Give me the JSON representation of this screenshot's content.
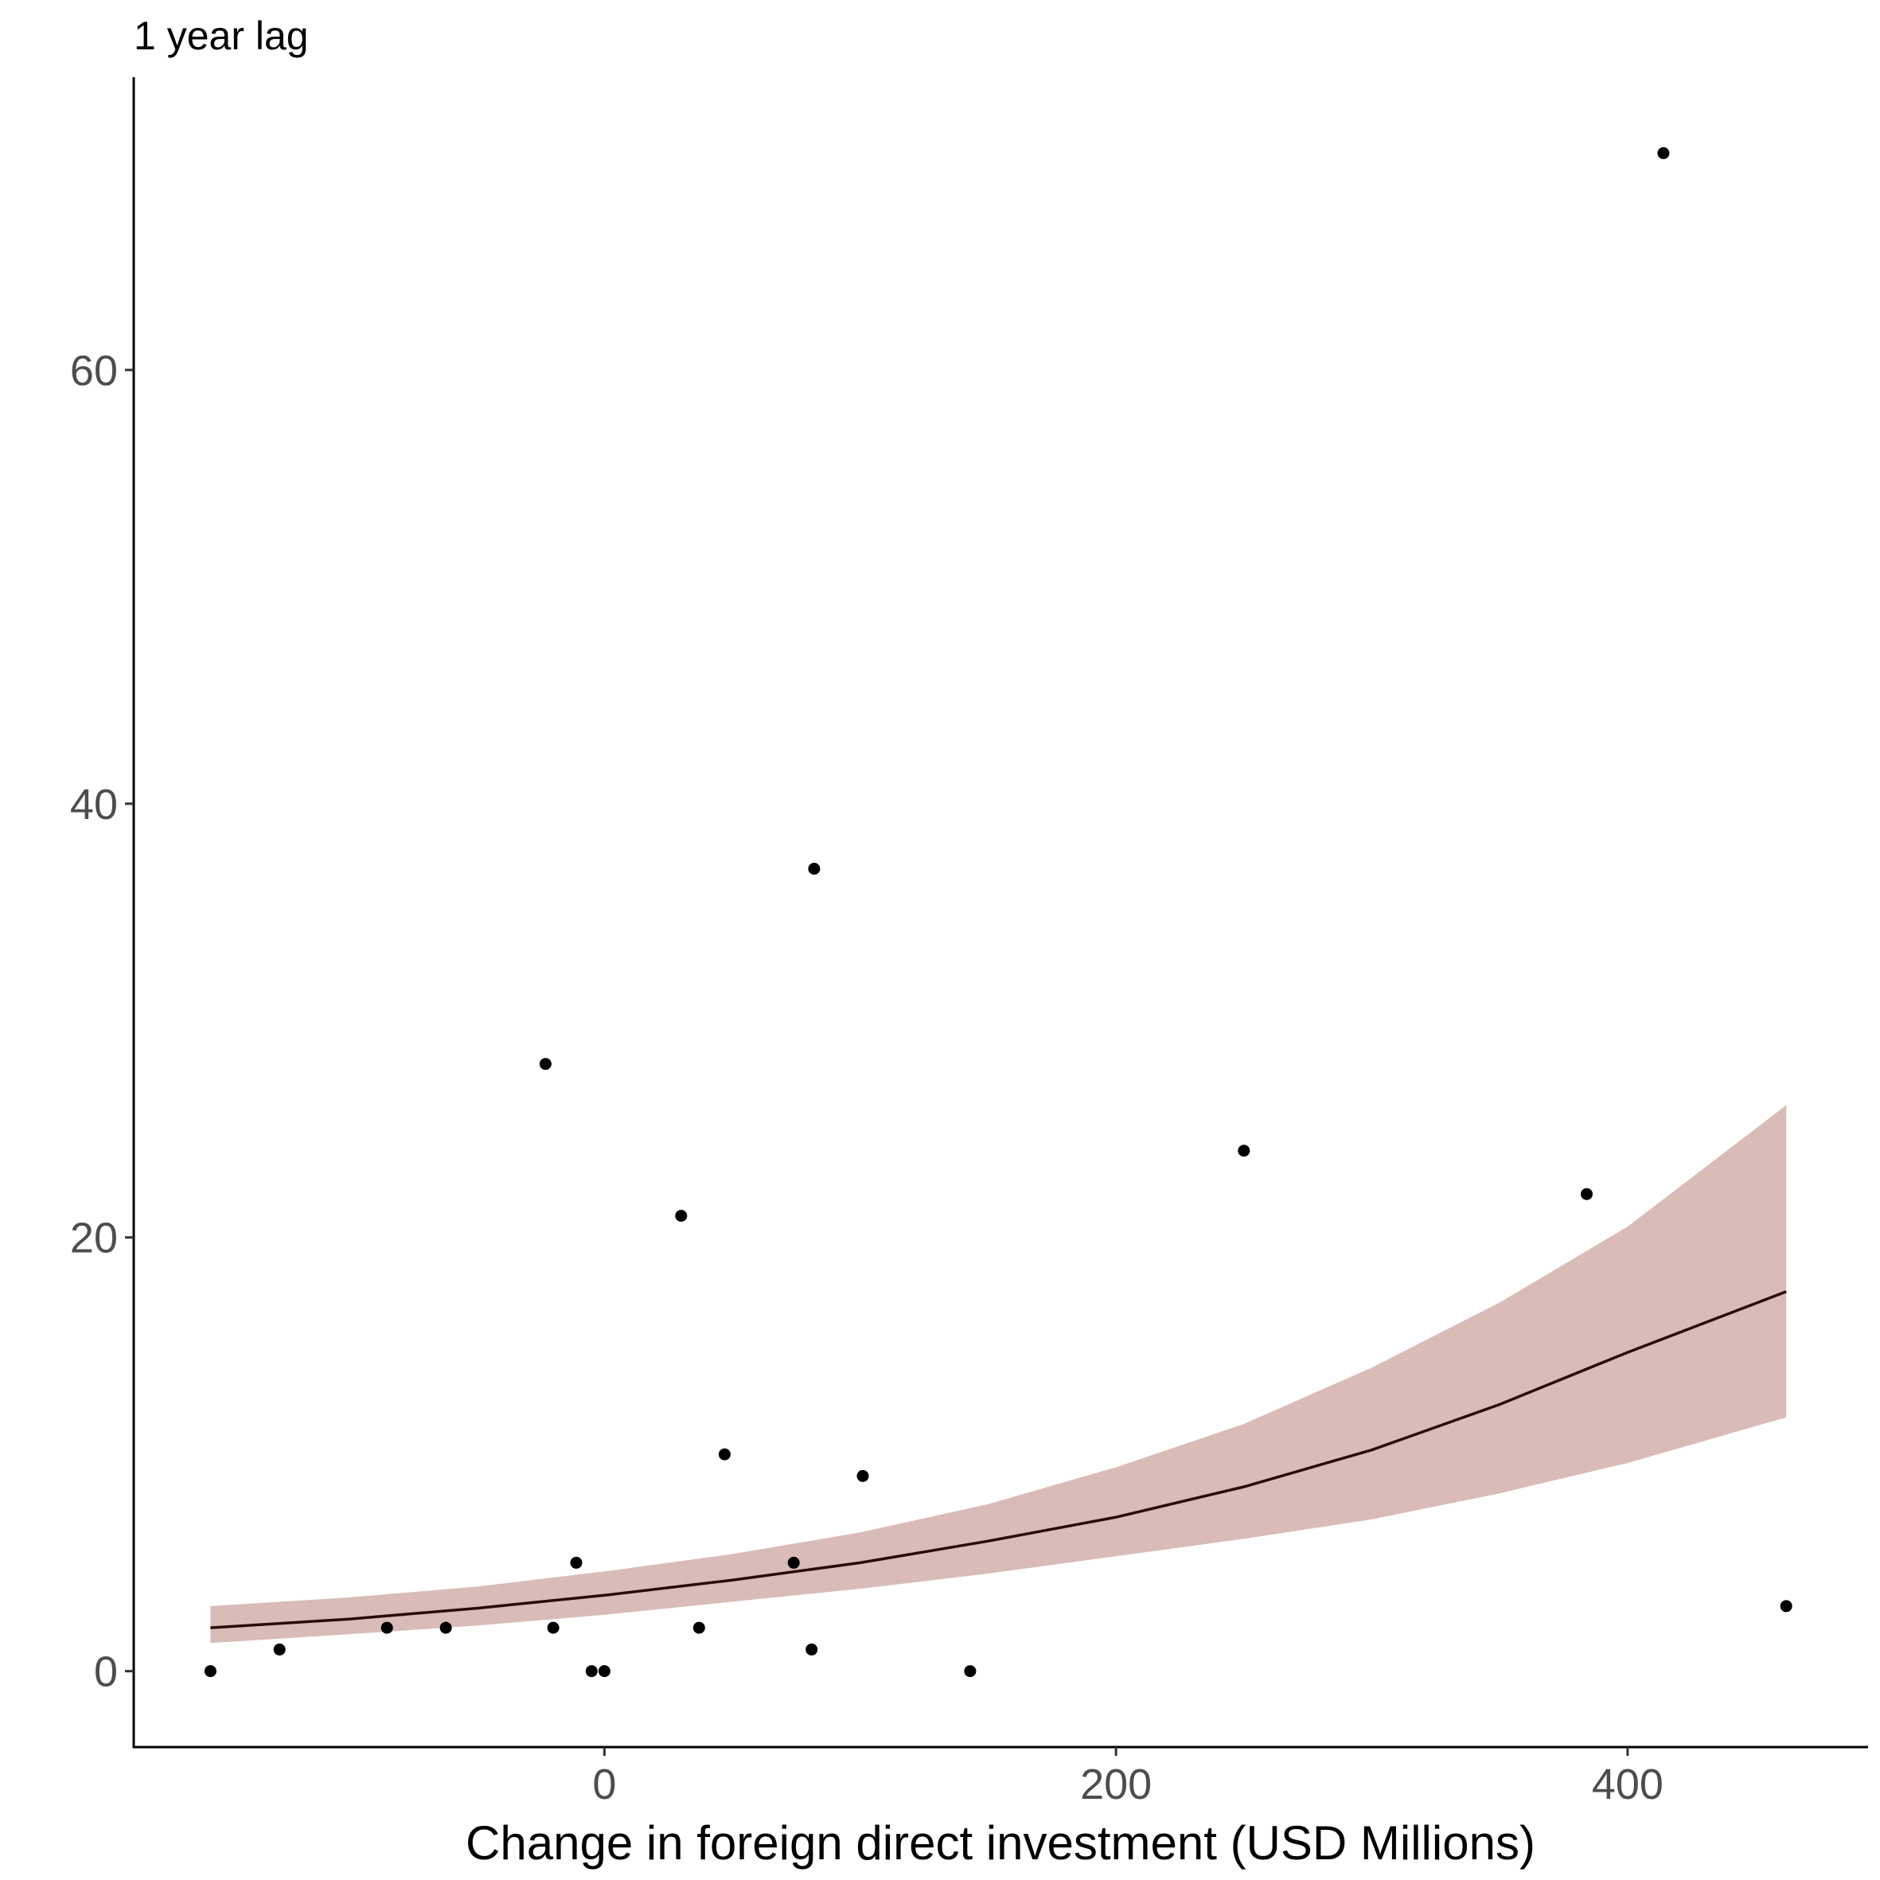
{
  "chart_data": {
    "type": "scatter",
    "title": "1 year lag",
    "xlabel": "Change in foreign direct investment (USD Millions)",
    "ylabel": "",
    "xlim": [
      -184,
      494
    ],
    "ylim": [
      -3.5,
      73.5
    ],
    "x_ticks": [
      0,
      200,
      400
    ],
    "y_ticks": [
      0,
      20,
      40,
      60
    ],
    "grid": false,
    "legend": "none",
    "colors": {
      "points": "#000000",
      "fit_line": "#2b0a0a",
      "ribbon": "#d9bcb7"
    },
    "points": [
      {
        "x": -154,
        "y": 0
      },
      {
        "x": -127,
        "y": 1
      },
      {
        "x": -85,
        "y": 2
      },
      {
        "x": -62,
        "y": 2
      },
      {
        "x": -23,
        "y": 28
      },
      {
        "x": -20,
        "y": 2
      },
      {
        "x": -11,
        "y": 5
      },
      {
        "x": -5,
        "y": 0
      },
      {
        "x": 0,
        "y": 0
      },
      {
        "x": 30,
        "y": 21
      },
      {
        "x": 37,
        "y": 2
      },
      {
        "x": 47,
        "y": 10
      },
      {
        "x": 74,
        "y": 5
      },
      {
        "x": 81,
        "y": 1
      },
      {
        "x": 82,
        "y": 37
      },
      {
        "x": 101,
        "y": 9
      },
      {
        "x": 143,
        "y": 0
      },
      {
        "x": 250,
        "y": 24
      },
      {
        "x": 384,
        "y": 22
      },
      {
        "x": 414,
        "y": 70
      },
      {
        "x": 462,
        "y": 3
      }
    ],
    "fit": {
      "x": [
        -154,
        -100,
        -50,
        0,
        50,
        100,
        150,
        200,
        250,
        300,
        350,
        400,
        462
      ],
      "y": [
        2.0,
        2.4,
        2.9,
        3.5,
        4.2,
        5.0,
        6.0,
        7.1,
        8.5,
        10.2,
        12.3,
        14.7,
        17.5
      ],
      "lower": [
        1.3,
        1.7,
        2.1,
        2.6,
        3.2,
        3.8,
        4.5,
        5.3,
        6.1,
        7.0,
        8.2,
        9.6,
        11.7
      ],
      "upper": [
        3.0,
        3.4,
        3.9,
        4.6,
        5.4,
        6.4,
        7.7,
        9.4,
        11.4,
        14.0,
        17.0,
        20.5,
        26.1
      ]
    }
  }
}
